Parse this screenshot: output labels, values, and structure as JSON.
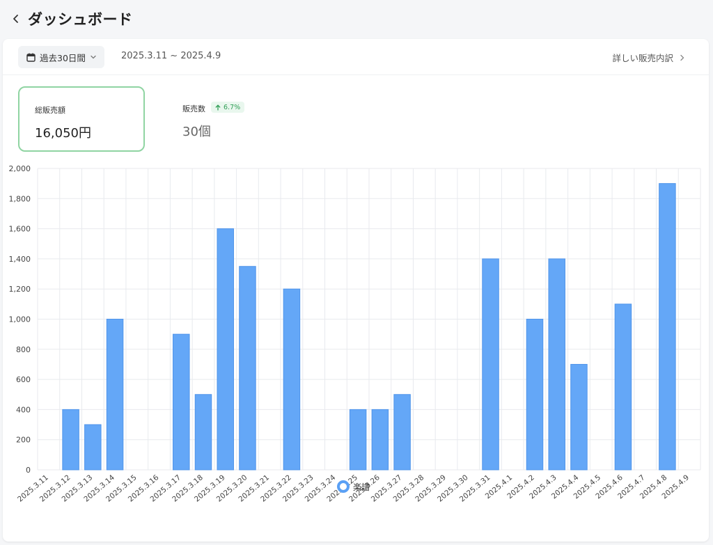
{
  "header": {
    "title": "ダッシュボード",
    "back_icon": "chevron-left-icon"
  },
  "toolbar": {
    "period_label": "過去30日間",
    "period_icon": "calendar-icon",
    "dropdown_icon": "chevron-down-icon",
    "date_range": "2025.3.11 ~ 2025.4.9",
    "detail_link": "詳しい販売内訳",
    "detail_icon": "chevron-right-icon"
  },
  "stats": {
    "total_sales": {
      "label": "総販売額",
      "value": "16,050円"
    },
    "sales_count": {
      "label": "販売数",
      "value": "30個",
      "change": "6.7%",
      "change_icon": "arrow-up-icon"
    }
  },
  "colors": {
    "bar": "#64a7f7",
    "bar_stroke": "#4f94ea",
    "grid": "#e8eaee",
    "highlight_border": "#8fd4a2",
    "badge_text": "#2f9e55"
  },
  "chart_data": {
    "type": "bar",
    "categories": [
      "2025.3.11",
      "2025.3.12",
      "2025.3.13",
      "2025.3.14",
      "2025.3.15",
      "2025.3.16",
      "2025.3.17",
      "2025.3.18",
      "2025.3.19",
      "2025.3.20",
      "2025.3.21",
      "2025.3.22",
      "2025.3.23",
      "2025.3.24",
      "2025.3.25",
      "2025.3.26",
      "2025.3.27",
      "2025.3.28",
      "2025.3.29",
      "2025.3.30",
      "2025.3.31",
      "2025.4.1",
      "2025.4.2",
      "2025.4.3",
      "2025.4.4",
      "2025.4.5",
      "2025.4.6",
      "2025.4.7",
      "2025.4.8",
      "2025.4.9"
    ],
    "series": [
      {
        "name": "楽譜",
        "values": [
          0,
          400,
          300,
          1000,
          0,
          0,
          900,
          500,
          1600,
          1350,
          0,
          1200,
          0,
          0,
          400,
          400,
          500,
          0,
          0,
          0,
          1400,
          0,
          1000,
          1400,
          700,
          0,
          1100,
          0,
          1900,
          0
        ]
      }
    ],
    "yticks": [
      "0",
      "200",
      "400",
      "600",
      "800",
      "1,000",
      "1,200",
      "1,400",
      "1,600",
      "1,800",
      "2,000"
    ],
    "ylim": [
      0,
      2000
    ],
    "grid": true,
    "legend": "bottom-center"
  }
}
